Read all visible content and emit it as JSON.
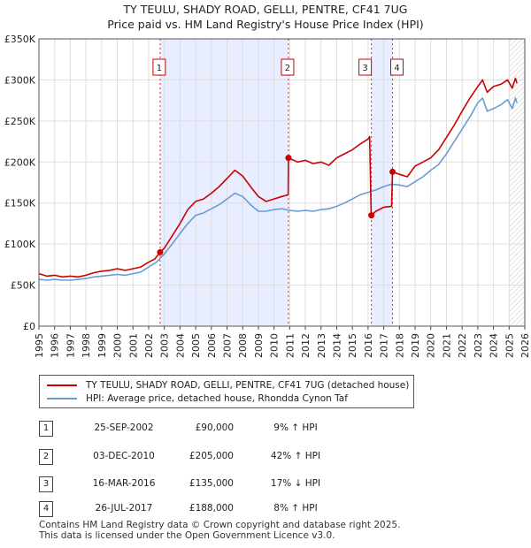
{
  "title": {
    "line1": "TY TEULU, SHADY ROAD, GELLI, PENTRE, CF41 7UG",
    "line2": "Price paid vs. HM Land Registry's House Price Index (HPI)"
  },
  "chart_data": {
    "type": "line",
    "x_ticks": [
      "1995",
      "1996",
      "1997",
      "1998",
      "1999",
      "2000",
      "2001",
      "2002",
      "2003",
      "2004",
      "2005",
      "2006",
      "2007",
      "2008",
      "2009",
      "2010",
      "2011",
      "2012",
      "2013",
      "2014",
      "2015",
      "2016",
      "2017",
      "2018",
      "2019",
      "2020",
      "2021",
      "2022",
      "2023",
      "2024",
      "2025",
      "2026"
    ],
    "y_ticks": [
      "£0",
      "£50K",
      "£100K",
      "£150K",
      "£200K",
      "£250K",
      "£300K",
      "£350K"
    ],
    "xlim": [
      1995,
      2026
    ],
    "ylim": [
      0,
      350000
    ],
    "forecast_start": 2025.0,
    "series": [
      {
        "name": "TY TEULU, SHADY ROAD, GELLI, PENTRE, CF41 7UG (detached house)",
        "color": "#cc0000",
        "points": [
          [
            1995.0,
            64000
          ],
          [
            1995.5,
            61000
          ],
          [
            1996.0,
            62000
          ],
          [
            1996.5,
            60000
          ],
          [
            1997.0,
            61000
          ],
          [
            1997.5,
            60000
          ],
          [
            1998.0,
            62000
          ],
          [
            1998.5,
            65000
          ],
          [
            1999.0,
            67000
          ],
          [
            1999.5,
            68000
          ],
          [
            2000.0,
            70000
          ],
          [
            2000.5,
            68000
          ],
          [
            2001.0,
            70000
          ],
          [
            2001.5,
            72000
          ],
          [
            2002.0,
            78000
          ],
          [
            2002.4,
            82000
          ],
          [
            2002.73,
            90000
          ],
          [
            2003.0,
            95000
          ],
          [
            2003.5,
            110000
          ],
          [
            2004.0,
            125000
          ],
          [
            2004.5,
            142000
          ],
          [
            2005.0,
            152000
          ],
          [
            2005.5,
            155000
          ],
          [
            2006.0,
            162000
          ],
          [
            2006.5,
            170000
          ],
          [
            2007.0,
            180000
          ],
          [
            2007.5,
            190000
          ],
          [
            2008.0,
            183000
          ],
          [
            2008.5,
            170000
          ],
          [
            2009.0,
            158000
          ],
          [
            2009.5,
            152000
          ],
          [
            2010.0,
            155000
          ],
          [
            2010.5,
            158000
          ],
          [
            2010.9,
            160000
          ],
          [
            2010.92,
            205000
          ],
          [
            2011.5,
            200000
          ],
          [
            2012.0,
            202000
          ],
          [
            2012.5,
            198000
          ],
          [
            2013.0,
            200000
          ],
          [
            2013.5,
            196000
          ],
          [
            2014.0,
            205000
          ],
          [
            2014.5,
            210000
          ],
          [
            2015.0,
            215000
          ],
          [
            2015.5,
            222000
          ],
          [
            2016.0,
            228000
          ],
          [
            2016.1,
            231000
          ],
          [
            2016.2,
            135000
          ],
          [
            2016.5,
            140000
          ],
          [
            2017.0,
            145000
          ],
          [
            2017.5,
            146000
          ],
          [
            2017.56,
            188000
          ],
          [
            2018.0,
            185000
          ],
          [
            2018.5,
            182000
          ],
          [
            2019.0,
            195000
          ],
          [
            2019.5,
            200000
          ],
          [
            2020.0,
            205000
          ],
          [
            2020.5,
            215000
          ],
          [
            2021.0,
            230000
          ],
          [
            2021.5,
            245000
          ],
          [
            2022.0,
            262000
          ],
          [
            2022.5,
            278000
          ],
          [
            2023.0,
            292000
          ],
          [
            2023.3,
            300000
          ],
          [
            2023.6,
            285000
          ],
          [
            2024.0,
            292000
          ],
          [
            2024.5,
            295000
          ],
          [
            2024.9,
            300000
          ],
          [
            2025.2,
            290000
          ],
          [
            2025.4,
            302000
          ],
          [
            2025.5,
            296000
          ]
        ]
      },
      {
        "name": "HPI: Average price, detached house, Rhondda Cynon Taf",
        "color": "#6b9bd1",
        "points": [
          [
            1995.0,
            57000
          ],
          [
            1995.5,
            56000
          ],
          [
            1996.0,
            57000
          ],
          [
            1996.5,
            56000
          ],
          [
            1997.0,
            56000
          ],
          [
            1997.5,
            57000
          ],
          [
            1998.0,
            58000
          ],
          [
            1998.5,
            60000
          ],
          [
            1999.0,
            61000
          ],
          [
            1999.5,
            62000
          ],
          [
            2000.0,
            63000
          ],
          [
            2000.5,
            62000
          ],
          [
            2001.0,
            64000
          ],
          [
            2001.5,
            66000
          ],
          [
            2002.0,
            72000
          ],
          [
            2002.5,
            78000
          ],
          [
            2003.0,
            88000
          ],
          [
            2003.5,
            100000
          ],
          [
            2004.0,
            113000
          ],
          [
            2004.5,
            125000
          ],
          [
            2005.0,
            135000
          ],
          [
            2005.5,
            138000
          ],
          [
            2006.0,
            143000
          ],
          [
            2006.5,
            148000
          ],
          [
            2007.0,
            155000
          ],
          [
            2007.5,
            162000
          ],
          [
            2008.0,
            158000
          ],
          [
            2008.5,
            148000
          ],
          [
            2009.0,
            140000
          ],
          [
            2009.5,
            140000
          ],
          [
            2010.0,
            142000
          ],
          [
            2010.5,
            143000
          ],
          [
            2011.0,
            141000
          ],
          [
            2011.5,
            140000
          ],
          [
            2012.0,
            141000
          ],
          [
            2012.5,
            140000
          ],
          [
            2013.0,
            142000
          ],
          [
            2013.5,
            143000
          ],
          [
            2014.0,
            146000
          ],
          [
            2014.5,
            150000
          ],
          [
            2015.0,
            155000
          ],
          [
            2015.5,
            160000
          ],
          [
            2016.0,
            163000
          ],
          [
            2016.5,
            166000
          ],
          [
            2017.0,
            170000
          ],
          [
            2017.5,
            173000
          ],
          [
            2018.0,
            172000
          ],
          [
            2018.5,
            170000
          ],
          [
            2019.0,
            176000
          ],
          [
            2019.5,
            182000
          ],
          [
            2020.0,
            190000
          ],
          [
            2020.5,
            197000
          ],
          [
            2021.0,
            210000
          ],
          [
            2021.5,
            225000
          ],
          [
            2022.0,
            240000
          ],
          [
            2022.5,
            255000
          ],
          [
            2023.0,
            272000
          ],
          [
            2023.3,
            278000
          ],
          [
            2023.6,
            262000
          ],
          [
            2024.0,
            265000
          ],
          [
            2024.5,
            270000
          ],
          [
            2024.9,
            276000
          ],
          [
            2025.2,
            265000
          ],
          [
            2025.4,
            278000
          ],
          [
            2025.5,
            272000
          ]
        ]
      }
    ],
    "sales": [
      {
        "num": "1",
        "date": "25-SEP-2002",
        "x": 2002.73,
        "price_value": 90000,
        "price": "£90,000",
        "hpi": "9% ↑ HPI"
      },
      {
        "num": "2",
        "date": "03-DEC-2010",
        "x": 2010.92,
        "price_value": 205000,
        "price": "£205,000",
        "hpi": "42% ↑ HPI"
      },
      {
        "num": "3",
        "date": "16-MAR-2016",
        "x": 2016.21,
        "price_value": 135000,
        "price": "£135,000",
        "hpi": "17% ↓ HPI"
      },
      {
        "num": "4",
        "date": "26-JUL-2017",
        "x": 2017.56,
        "price_value": 188000,
        "price": "£188,000",
        "hpi": "8% ↑ HPI"
      }
    ],
    "shaded_periods": [
      [
        2002.73,
        2010.92
      ],
      [
        2016.21,
        2017.56
      ]
    ],
    "shade_color": "#e8eeff",
    "grid": true
  },
  "legend": {
    "property_label": "TY TEULU, SHADY ROAD, GELLI, PENTRE, CF41 7UG (detached house)",
    "hpi_label": "HPI: Average price, detached house, Rhondda Cynon Taf"
  },
  "footer": {
    "line1": "Contains HM Land Registry data © Crown copyright and database right 2025.",
    "line2": "This data is licensed under the Open Government Licence v3.0."
  }
}
